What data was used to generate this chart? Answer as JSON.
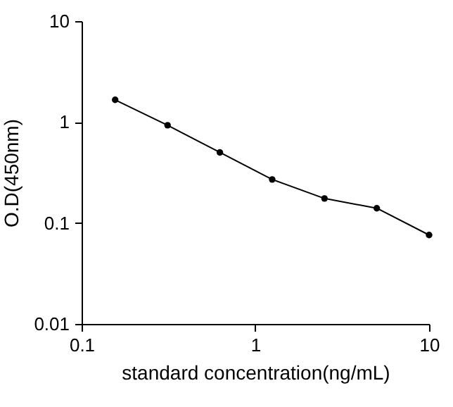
{
  "chart_data": {
    "type": "line",
    "xlabel": "standard concentration(ng/mL)",
    "ylabel": "O.D(450nm)",
    "x": [
      0.156,
      0.3125,
      0.625,
      1.25,
      2.5,
      5,
      10
    ],
    "series": [
      {
        "color": "#000000",
        "values": [
          1.66,
          0.93,
          0.5,
          0.27,
          0.175,
          0.14,
          0.076
        ]
      }
    ],
    "log": "xy",
    "xlim": [
      0.1,
      10
    ],
    "ylim": [
      0.01,
      10
    ],
    "xticks": [
      0.1,
      1,
      10
    ],
    "yticks": [
      0.01,
      0.1,
      1,
      10
    ],
    "grid": false,
    "marker": "circle",
    "line_style": "solid"
  }
}
